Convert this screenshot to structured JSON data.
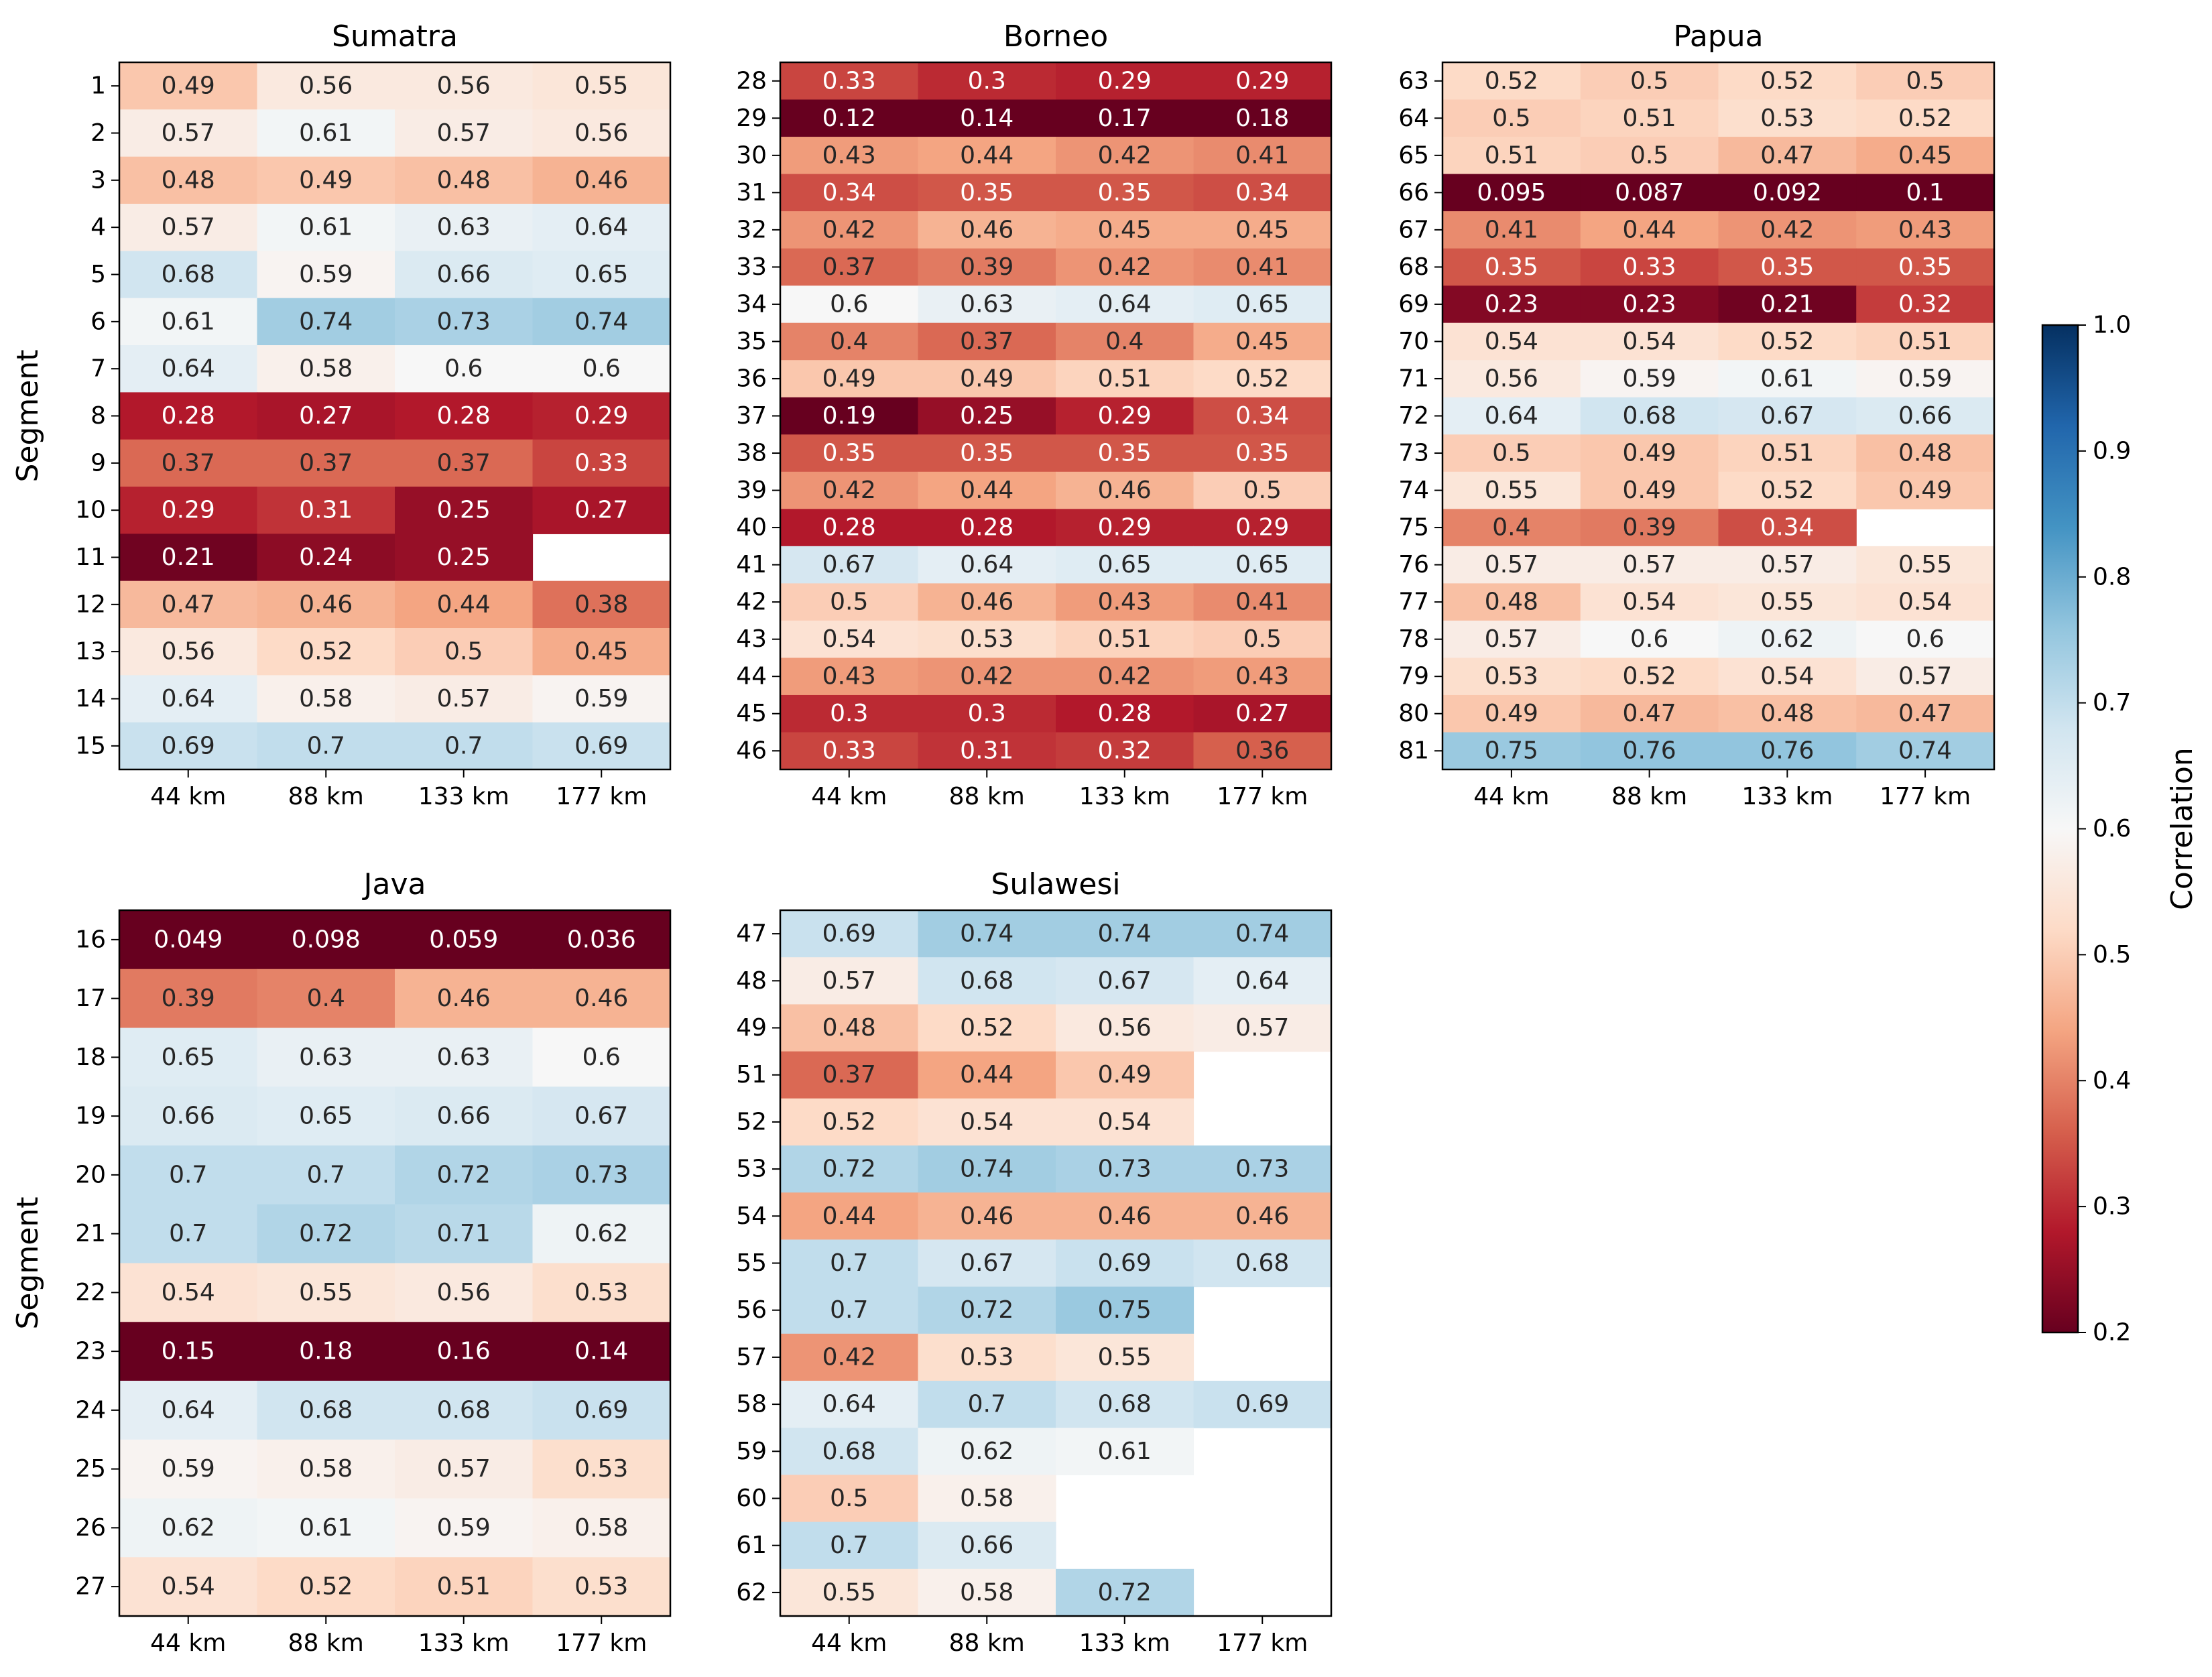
{
  "chart_data": {
    "type": "heatmap",
    "colorscale": "RdBu",
    "vmin": 0.2,
    "vmax": 1.0,
    "colorbar": {
      "label": "Correlation",
      "ticks": [
        "0.2",
        "0.3",
        "0.4",
        "0.5",
        "0.6",
        "0.7",
        "0.8",
        "0.9",
        "1.0"
      ]
    },
    "x_categories": [
      "44 km",
      "88 km",
      "133 km",
      "177 km"
    ],
    "ylabel": "Segment",
    "panels": [
      {
        "title": "Sumatra",
        "rows": [
          "1",
          "2",
          "3",
          "4",
          "5",
          "6",
          "7",
          "8",
          "9",
          "10",
          "11",
          "12",
          "13",
          "14",
          "15"
        ],
        "values": [
          [
            "0.49",
            "0.56",
            "0.56",
            "0.55"
          ],
          [
            "0.57",
            "0.61",
            "0.57",
            "0.56"
          ],
          [
            "0.48",
            "0.49",
            "0.48",
            "0.46"
          ],
          [
            "0.57",
            "0.61",
            "0.63",
            "0.64"
          ],
          [
            "0.68",
            "0.59",
            "0.66",
            "0.65"
          ],
          [
            "0.61",
            "0.74",
            "0.73",
            "0.74"
          ],
          [
            "0.64",
            "0.58",
            "0.6",
            "0.6"
          ],
          [
            "0.28",
            "0.27",
            "0.28",
            "0.29"
          ],
          [
            "0.37",
            "0.37",
            "0.37",
            "0.33"
          ],
          [
            "0.29",
            "0.31",
            "0.25",
            "0.27"
          ],
          [
            "0.21",
            "0.24",
            "0.25",
            null
          ],
          [
            "0.47",
            "0.46",
            "0.44",
            "0.38"
          ],
          [
            "0.56",
            "0.52",
            "0.5",
            "0.45"
          ],
          [
            "0.64",
            "0.58",
            "0.57",
            "0.59"
          ],
          [
            "0.69",
            "0.7",
            "0.7",
            "0.69"
          ]
        ]
      },
      {
        "title": "Borneo",
        "rows": [
          "28",
          "29",
          "30",
          "31",
          "32",
          "33",
          "34",
          "35",
          "36",
          "37",
          "38",
          "39",
          "40",
          "41",
          "42",
          "43",
          "44",
          "45",
          "46"
        ],
        "values": [
          [
            "0.33",
            "0.3",
            "0.29",
            "0.29"
          ],
          [
            "0.12",
            "0.14",
            "0.17",
            "0.18"
          ],
          [
            "0.43",
            "0.44",
            "0.42",
            "0.41"
          ],
          [
            "0.34",
            "0.35",
            "0.35",
            "0.34"
          ],
          [
            "0.42",
            "0.46",
            "0.45",
            "0.45"
          ],
          [
            "0.37",
            "0.39",
            "0.42",
            "0.41"
          ],
          [
            "0.6",
            "0.63",
            "0.64",
            "0.65"
          ],
          [
            "0.4",
            "0.37",
            "0.4",
            "0.45"
          ],
          [
            "0.49",
            "0.49",
            "0.51",
            "0.52"
          ],
          [
            "0.19",
            "0.25",
            "0.29",
            "0.34"
          ],
          [
            "0.35",
            "0.35",
            "0.35",
            "0.35"
          ],
          [
            "0.42",
            "0.44",
            "0.46",
            "0.5"
          ],
          [
            "0.28",
            "0.28",
            "0.29",
            "0.29"
          ],
          [
            "0.67",
            "0.64",
            "0.65",
            "0.65"
          ],
          [
            "0.5",
            "0.46",
            "0.43",
            "0.41"
          ],
          [
            "0.54",
            "0.53",
            "0.51",
            "0.5"
          ],
          [
            "0.43",
            "0.42",
            "0.42",
            "0.43"
          ],
          [
            "0.3",
            "0.3",
            "0.28",
            "0.27"
          ],
          [
            "0.33",
            "0.31",
            "0.32",
            "0.36"
          ]
        ]
      },
      {
        "title": "Papua",
        "rows": [
          "63",
          "64",
          "65",
          "66",
          "67",
          "68",
          "69",
          "70",
          "71",
          "72",
          "73",
          "74",
          "75",
          "76",
          "77",
          "78",
          "79",
          "80",
          "81"
        ],
        "values": [
          [
            "0.52",
            "0.5",
            "0.52",
            "0.5"
          ],
          [
            "0.5",
            "0.51",
            "0.53",
            "0.52"
          ],
          [
            "0.51",
            "0.5",
            "0.47",
            "0.45"
          ],
          [
            "0.095",
            "0.087",
            "0.092",
            "0.1"
          ],
          [
            "0.41",
            "0.44",
            "0.42",
            "0.43"
          ],
          [
            "0.35",
            "0.33",
            "0.35",
            "0.35"
          ],
          [
            "0.23",
            "0.23",
            "0.21",
            "0.32"
          ],
          [
            "0.54",
            "0.54",
            "0.52",
            "0.51"
          ],
          [
            "0.56",
            "0.59",
            "0.61",
            "0.59"
          ],
          [
            "0.64",
            "0.68",
            "0.67",
            "0.66"
          ],
          [
            "0.5",
            "0.49",
            "0.51",
            "0.48"
          ],
          [
            "0.55",
            "0.49",
            "0.52",
            "0.49"
          ],
          [
            "0.4",
            "0.39",
            "0.34",
            null
          ],
          [
            "0.57",
            "0.57",
            "0.57",
            "0.55"
          ],
          [
            "0.48",
            "0.54",
            "0.55",
            "0.54"
          ],
          [
            "0.57",
            "0.6",
            "0.62",
            "0.6"
          ],
          [
            "0.53",
            "0.52",
            "0.54",
            "0.57"
          ],
          [
            "0.49",
            "0.47",
            "0.48",
            "0.47"
          ],
          [
            "0.75",
            "0.76",
            "0.76",
            "0.74"
          ]
        ]
      },
      {
        "title": "Java",
        "rows": [
          "16",
          "17",
          "18",
          "19",
          "20",
          "21",
          "22",
          "23",
          "24",
          "25",
          "26",
          "27"
        ],
        "values": [
          [
            "0.049",
            "0.098",
            "0.059",
            "0.036"
          ],
          [
            "0.39",
            "0.4",
            "0.46",
            "0.46"
          ],
          [
            "0.65",
            "0.63",
            "0.63",
            "0.6"
          ],
          [
            "0.66",
            "0.65",
            "0.66",
            "0.67"
          ],
          [
            "0.7",
            "0.7",
            "0.72",
            "0.73"
          ],
          [
            "0.7",
            "0.72",
            "0.71",
            "0.62"
          ],
          [
            "0.54",
            "0.55",
            "0.56",
            "0.53"
          ],
          [
            "0.15",
            "0.18",
            "0.16",
            "0.14"
          ],
          [
            "0.64",
            "0.68",
            "0.68",
            "0.69"
          ],
          [
            "0.59",
            "0.58",
            "0.57",
            "0.53"
          ],
          [
            "0.62",
            "0.61",
            "0.59",
            "0.58"
          ],
          [
            "0.54",
            "0.52",
            "0.51",
            "0.53"
          ]
        ]
      },
      {
        "title": "Sulawesi",
        "rows": [
          "47",
          "48",
          "49",
          "51",
          "52",
          "53",
          "54",
          "55",
          "56",
          "57",
          "58",
          "59",
          "60",
          "61",
          "62"
        ],
        "values": [
          [
            "0.69",
            "0.74",
            "0.74",
            "0.74"
          ],
          [
            "0.57",
            "0.68",
            "0.67",
            "0.64"
          ],
          [
            "0.48",
            "0.52",
            "0.56",
            "0.57"
          ],
          [
            "0.37",
            "0.44",
            "0.49",
            null
          ],
          [
            "0.52",
            "0.54",
            "0.54",
            null
          ],
          [
            "0.72",
            "0.74",
            "0.73",
            "0.73"
          ],
          [
            "0.44",
            "0.46",
            "0.46",
            "0.46"
          ],
          [
            "0.7",
            "0.67",
            "0.69",
            "0.68"
          ],
          [
            "0.7",
            "0.72",
            "0.75",
            null
          ],
          [
            "0.42",
            "0.53",
            "0.55",
            null
          ],
          [
            "0.64",
            "0.7",
            "0.68",
            "0.69"
          ],
          [
            "0.68",
            "0.62",
            "0.61",
            null
          ],
          [
            "0.5",
            "0.58",
            null,
            null
          ],
          [
            "0.7",
            "0.66",
            null,
            null
          ],
          [
            "0.55",
            "0.58",
            "0.72",
            null
          ]
        ]
      }
    ]
  }
}
